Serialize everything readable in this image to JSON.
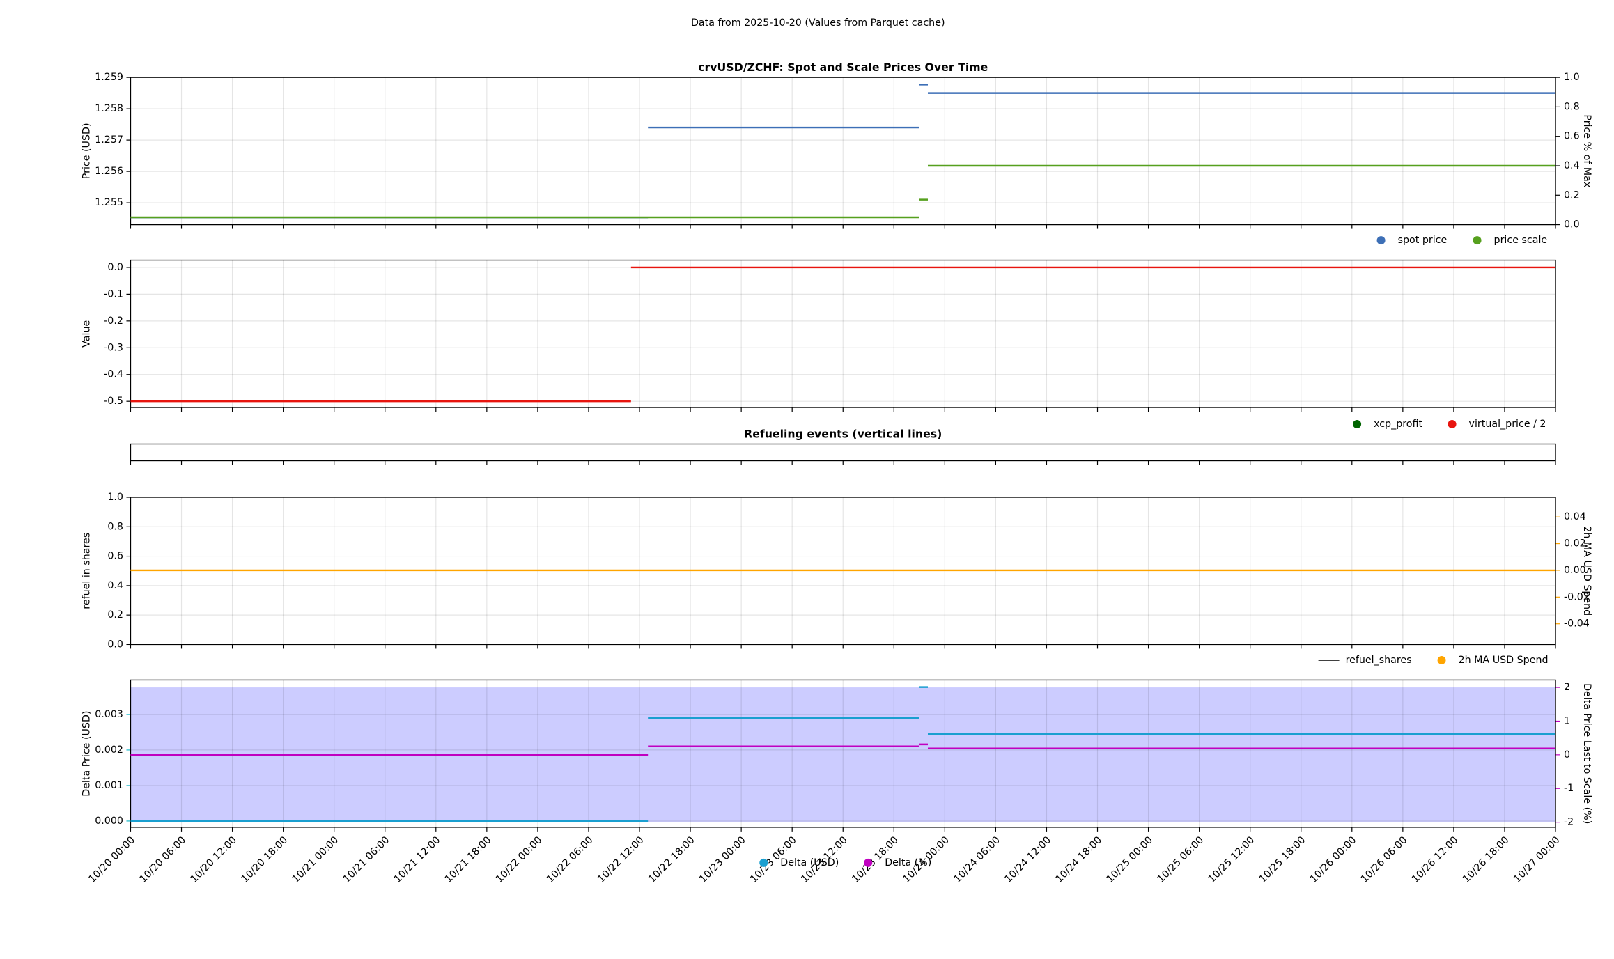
{
  "suptitle": "Data from 2025-10-20 (Values from Parquet cache)",
  "chart_data": [
    {
      "type": "line",
      "title": "crvUSD/ZCHF: Spot and Scale Prices Over Time",
      "ylabel": "Price (USD)",
      "y2label": "Price % of Max",
      "xlim": [
        "10/20 00:00",
        "10/27 00:00"
      ],
      "ylim": [
        1.2543,
        1.259
      ],
      "yticks": [
        1.255,
        1.256,
        1.257,
        1.258,
        1.259
      ],
      "y2lim": [
        0,
        1
      ],
      "y2ticks": [
        {
          "value": 0,
          "label": "0.0"
        },
        0.2,
        0.4,
        0.6,
        0.8,
        {
          "value": 1,
          "label": "1.0"
        }
      ],
      "grid": true,
      "series": [
        {
          "name": "spot price",
          "color": "#3d6fb6",
          "axis": "y",
          "x": [
            "10/20 00:00",
            "10/22 13:00",
            "10/22 13:00",
            "10/22 13:00",
            "10/23 21:00",
            "10/23 21:00",
            "10/23 21:00",
            "10/23 22:00",
            "10/23 22:00",
            "10/23 22:00",
            "10/27 00:00"
          ],
          "values": [
            1.25453,
            1.25453,
            null,
            1.2574,
            1.2574,
            null,
            1.25877,
            1.25877,
            null,
            1.2585,
            1.2585
          ]
        },
        {
          "name": "price scale",
          "color": "#56a01e",
          "axis": "y2",
          "x": [
            "10/20 00:00",
            "10/23 21:00",
            "10/23 21:00",
            "10/23 21:00",
            "10/23 22:00",
            "10/23 22:00",
            "10/23 22:00",
            "10/27 00:00"
          ],
          "values": [
            0.05,
            0.05,
            null,
            0.17,
            0.17,
            null,
            0.4,
            0.4
          ]
        }
      ]
    },
    {
      "type": "line",
      "ylabel": "Value",
      "xlim": [
        "10/20 00:00",
        "10/27 00:00"
      ],
      "ylim": [
        -0.523,
        0.027
      ],
      "yticks": [
        -0.5,
        -0.4,
        -0.3,
        -0.2,
        -0.1,
        {
          "value": 0,
          "label": "0.0"
        }
      ],
      "grid": true,
      "series": [
        {
          "name": "xcp_profit",
          "color": "#006400",
          "axis": "y",
          "x": [],
          "values": []
        },
        {
          "name": "virtual_price / 2",
          "color": "#e8150f",
          "axis": "y",
          "x": [
            "10/20 00:00",
            "10/22 11:00",
            "10/22 11:00",
            "10/22 11:00",
            "10/27 00:00"
          ],
          "values": [
            -0.5,
            -0.5,
            null,
            0,
            0
          ]
        }
      ]
    },
    {
      "type": "events",
      "title": "Refueling events (vertical lines)",
      "xlim": [
        "10/20 00:00",
        "10/27 00:00"
      ],
      "grid": false,
      "series": []
    },
    {
      "type": "line",
      "ylabel": "refuel in shares",
      "y2label": "2h MA USD Spend",
      "y2label_color": "#ffa500",
      "xlim": [
        "10/20 00:00",
        "10/27 00:00"
      ],
      "ylim": [
        0,
        1
      ],
      "yticks": [
        {
          "value": 0,
          "label": "0.0"
        },
        0.2,
        0.4,
        0.6,
        0.8,
        {
          "value": 1,
          "label": "1.0"
        }
      ],
      "y2lim": [
        -0.0555,
        0.0547
      ],
      "y2ticks": [
        -0.04,
        -0.02,
        {
          "value": 0,
          "label": "0.00"
        },
        0.02,
        0.04
      ],
      "grid": true,
      "series": [
        {
          "name": "refuel_shares",
          "color": "#000000",
          "axis": "y",
          "legend_marker": "line",
          "x": [],
          "values": []
        },
        {
          "name": "2h MA USD Spend",
          "color": "#ffa500",
          "axis": "y2",
          "x": [
            "10/20 00:00",
            "10/27 00:00"
          ],
          "values": [
            0,
            0
          ]
        }
      ]
    },
    {
      "type": "line",
      "ylabel": "Delta Price (USD)",
      "ylabel_color": "#17b8c8",
      "y2label": "Delta Price Last to Scale (%)",
      "y2label_color": "#c000c0",
      "xlim": [
        "10/20 00:00",
        "10/27 00:00"
      ],
      "ylim": [
        -0.000176,
        0.00397
      ],
      "yticks": [
        {
          "value": 0,
          "label": "0.000"
        },
        0.001,
        0.002,
        0.003
      ],
      "y2lim": [
        -2.15,
        2.22
      ],
      "y2ticks": [
        -2,
        -1,
        0,
        1,
        2
      ],
      "grid": true,
      "shade": {
        "axis": "y2",
        "range": [
          -2,
          2
        ],
        "color": "#ccccff"
      },
      "xticks": [
        "10/20 00:00",
        "10/20 06:00",
        "10/20 12:00",
        "10/20 18:00",
        "10/21 00:00",
        "10/21 06:00",
        "10/21 12:00",
        "10/21 18:00",
        "10/22 00:00",
        "10/22 06:00",
        "10/22 12:00",
        "10/22 18:00",
        "10/23 00:00",
        "10/23 06:00",
        "10/23 12:00",
        "10/23 18:00",
        "10/24 00:00",
        "10/24 06:00",
        "10/24 12:00",
        "10/24 18:00",
        "10/25 00:00",
        "10/25 06:00",
        "10/25 12:00",
        "10/25 18:00",
        "10/26 00:00",
        "10/26 06:00",
        "10/26 12:00",
        "10/26 18:00",
        "10/27 00:00"
      ],
      "series": [
        {
          "name": "Delta (USD)",
          "color": "#1a9fd0",
          "axis": "y",
          "x": [
            "10/20 00:00",
            "10/22 13:00",
            "10/22 13:00",
            "10/22 13:00",
            "10/23 21:00",
            "10/23 21:00",
            "10/23 21:00",
            "10/23 22:00",
            "10/23 22:00",
            "10/23 22:00",
            "10/27 00:00"
          ],
          "values": [
            0,
            0,
            null,
            0.0029,
            0.0029,
            null,
            0.00377,
            0.00377,
            null,
            0.00245,
            0.00245
          ]
        },
        {
          "name": "Delta (%)",
          "color": "#c000c0",
          "axis": "y2",
          "x": [
            "10/20 00:00",
            "10/22 13:00",
            "10/22 13:00",
            "10/22 13:00",
            "10/23 21:00",
            "10/23 21:00",
            "10/23 21:00",
            "10/23 22:00",
            "10/23 22:00",
            "10/23 22:00",
            "10/27 00:00"
          ],
          "values": [
            0,
            0,
            null,
            0.25,
            0.25,
            null,
            0.31,
            0.31,
            null,
            0.19,
            0.19
          ]
        }
      ]
    }
  ]
}
